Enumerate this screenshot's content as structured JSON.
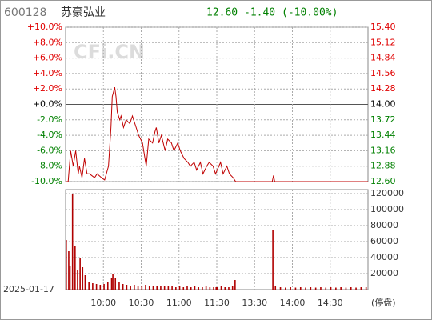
{
  "header": {
    "code": "600128",
    "name": "苏豪弘业",
    "price": "12.60",
    "change": "-1.40",
    "pct": "(-10.00%)",
    "watermark": "CFi.CN",
    "date": "2025-01-17",
    "status": "(停盘)"
  },
  "chart_data": [
    {
      "type": "line",
      "color": "#c00000",
      "up_color": "#e00000",
      "down_color": "#008000",
      "x": [
        "09:30",
        "09:32",
        "09:34",
        "09:36",
        "09:38",
        "09:40",
        "09:41",
        "09:43",
        "09:45",
        "09:47",
        "09:49",
        "09:53",
        "09:55",
        "09:59",
        "10:01",
        "10:04",
        "10:06",
        "10:07",
        "10:09",
        "10:10",
        "10:11",
        "10:13",
        "10:14",
        "10:16",
        "10:18",
        "10:21",
        "10:23",
        "10:26",
        "10:28",
        "10:31",
        "10:33",
        "10:34",
        "10:36",
        "10:39",
        "10:41",
        "10:42",
        "10:44",
        "10:46",
        "10:49",
        "10:51",
        "10:54",
        "10:56",
        "10:59",
        "11:01",
        "11:04",
        "11:07",
        "11:09",
        "11:12",
        "11:14",
        "11:17",
        "11:19",
        "11:22",
        "11:24",
        "11:27",
        "11:29",
        "13:03",
        "13:05",
        "13:08",
        "13:10",
        "13:13",
        "13:15",
        "13:44",
        "13:45",
        "13:46",
        "15:00"
      ],
      "values": [
        12.6,
        12.6,
        13.16,
        12.88,
        13.16,
        12.74,
        12.88,
        12.67,
        13.02,
        12.74,
        12.74,
        12.67,
        12.74,
        12.66,
        12.63,
        12.88,
        13.58,
        14.14,
        14.31,
        14.14,
        13.86,
        13.72,
        13.79,
        13.58,
        13.72,
        13.65,
        13.79,
        13.58,
        13.44,
        13.3,
        13.02,
        12.88,
        13.37,
        13.3,
        13.51,
        13.58,
        13.3,
        13.44,
        13.16,
        13.37,
        13.3,
        13.16,
        13.3,
        13.16,
        13.02,
        12.95,
        12.88,
        12.95,
        12.81,
        12.95,
        12.74,
        12.88,
        12.95,
        12.88,
        12.74,
        12.95,
        12.74,
        12.88,
        12.74,
        12.67,
        12.6,
        12.6,
        12.71,
        12.6,
        12.6
      ],
      "ylim": [
        12.6,
        15.4
      ],
      "yticks": [
        {
          "value": 15.4,
          "label": "15.40"
        },
        {
          "value": 15.12,
          "label": "15.12"
        },
        {
          "value": 14.84,
          "label": "14.84"
        },
        {
          "value": 14.56,
          "label": "14.56"
        },
        {
          "value": 14.28,
          "label": "14.28"
        },
        {
          "value": 14.0,
          "label": "14.00"
        },
        {
          "value": 13.72,
          "label": "13.72"
        },
        {
          "value": 13.44,
          "label": "13.44"
        },
        {
          "value": 13.16,
          "label": "13.16"
        },
        {
          "value": 12.88,
          "label": "12.88"
        },
        {
          "value": 12.6,
          "label": "12.60"
        }
      ],
      "y2lim": [
        -10,
        10
      ],
      "y2ticks": [
        {
          "value": 10,
          "label": "+10.0%"
        },
        {
          "value": 8,
          "label": "+8.0%"
        },
        {
          "value": 6,
          "label": "+6.0%"
        },
        {
          "value": 4,
          "label": "+4.0%"
        },
        {
          "value": 2,
          "label": "+2.0%"
        },
        {
          "value": 0,
          "label": "+0.0%"
        },
        {
          "value": -2,
          "label": "-2.0%"
        },
        {
          "value": -4,
          "label": "-4.0%"
        },
        {
          "value": -6,
          "label": "-6.0%"
        },
        {
          "value": -8,
          "label": "-8.0%"
        },
        {
          "value": -10,
          "label": "-10.0%"
        }
      ]
    },
    {
      "type": "bar",
      "color": "#b00000",
      "categories": [
        "09:30",
        "09:32",
        "09:33",
        "09:35",
        "09:37",
        "09:39",
        "09:41",
        "09:43",
        "09:45",
        "09:48",
        "09:51",
        "09:54",
        "09:57",
        "10:00",
        "10:03",
        "10:06",
        "10:07",
        "10:09",
        "10:12",
        "10:15",
        "10:18",
        "10:21",
        "10:24",
        "10:27",
        "10:30",
        "10:33",
        "10:36",
        "10:39",
        "10:42",
        "10:45",
        "10:48",
        "10:51",
        "10:54",
        "10:57",
        "11:00",
        "11:03",
        "11:06",
        "11:09",
        "11:12",
        "11:15",
        "11:18",
        "11:21",
        "11:24",
        "11:27",
        "11:29",
        "13:00",
        "13:03",
        "13:06",
        "13:09",
        "13:12",
        "13:14",
        "13:44",
        "13:46",
        "13:50",
        "13:54",
        "13:58",
        "14:02",
        "14:06",
        "14:10",
        "14:14",
        "14:18",
        "14:22",
        "14:26",
        "14:30",
        "14:34",
        "14:38",
        "14:42",
        "14:46",
        "14:50",
        "14:54",
        "14:58"
      ],
      "values": [
        62000,
        48000,
        30000,
        120000,
        55000,
        25000,
        40000,
        28000,
        18000,
        10000,
        8000,
        7000,
        6000,
        7000,
        9000,
        15000,
        20000,
        14000,
        9000,
        7000,
        6000,
        5000,
        6000,
        5000,
        5000,
        6000,
        5000,
        4000,
        5000,
        4000,
        4000,
        5000,
        4000,
        3000,
        4000,
        3000,
        4000,
        3000,
        4000,
        3000,
        3000,
        4000,
        3000,
        3000,
        3000,
        3000,
        4000,
        3000,
        3000,
        5000,
        12000,
        75000,
        4000,
        3000,
        2500,
        3000,
        2500,
        3000,
        2500,
        3000,
        2500,
        3000,
        2500,
        3000,
        2500,
        3000,
        2500,
        3000,
        2500,
        3000,
        3000
      ],
      "ylim": [
        0,
        125000
      ],
      "yticks": [
        20000,
        40000,
        60000,
        80000,
        100000,
        120000
      ],
      "xticks": [
        "10:00",
        "10:30",
        "11:00",
        "11:30",
        "13:30",
        "14:00",
        "14:30"
      ]
    }
  ]
}
